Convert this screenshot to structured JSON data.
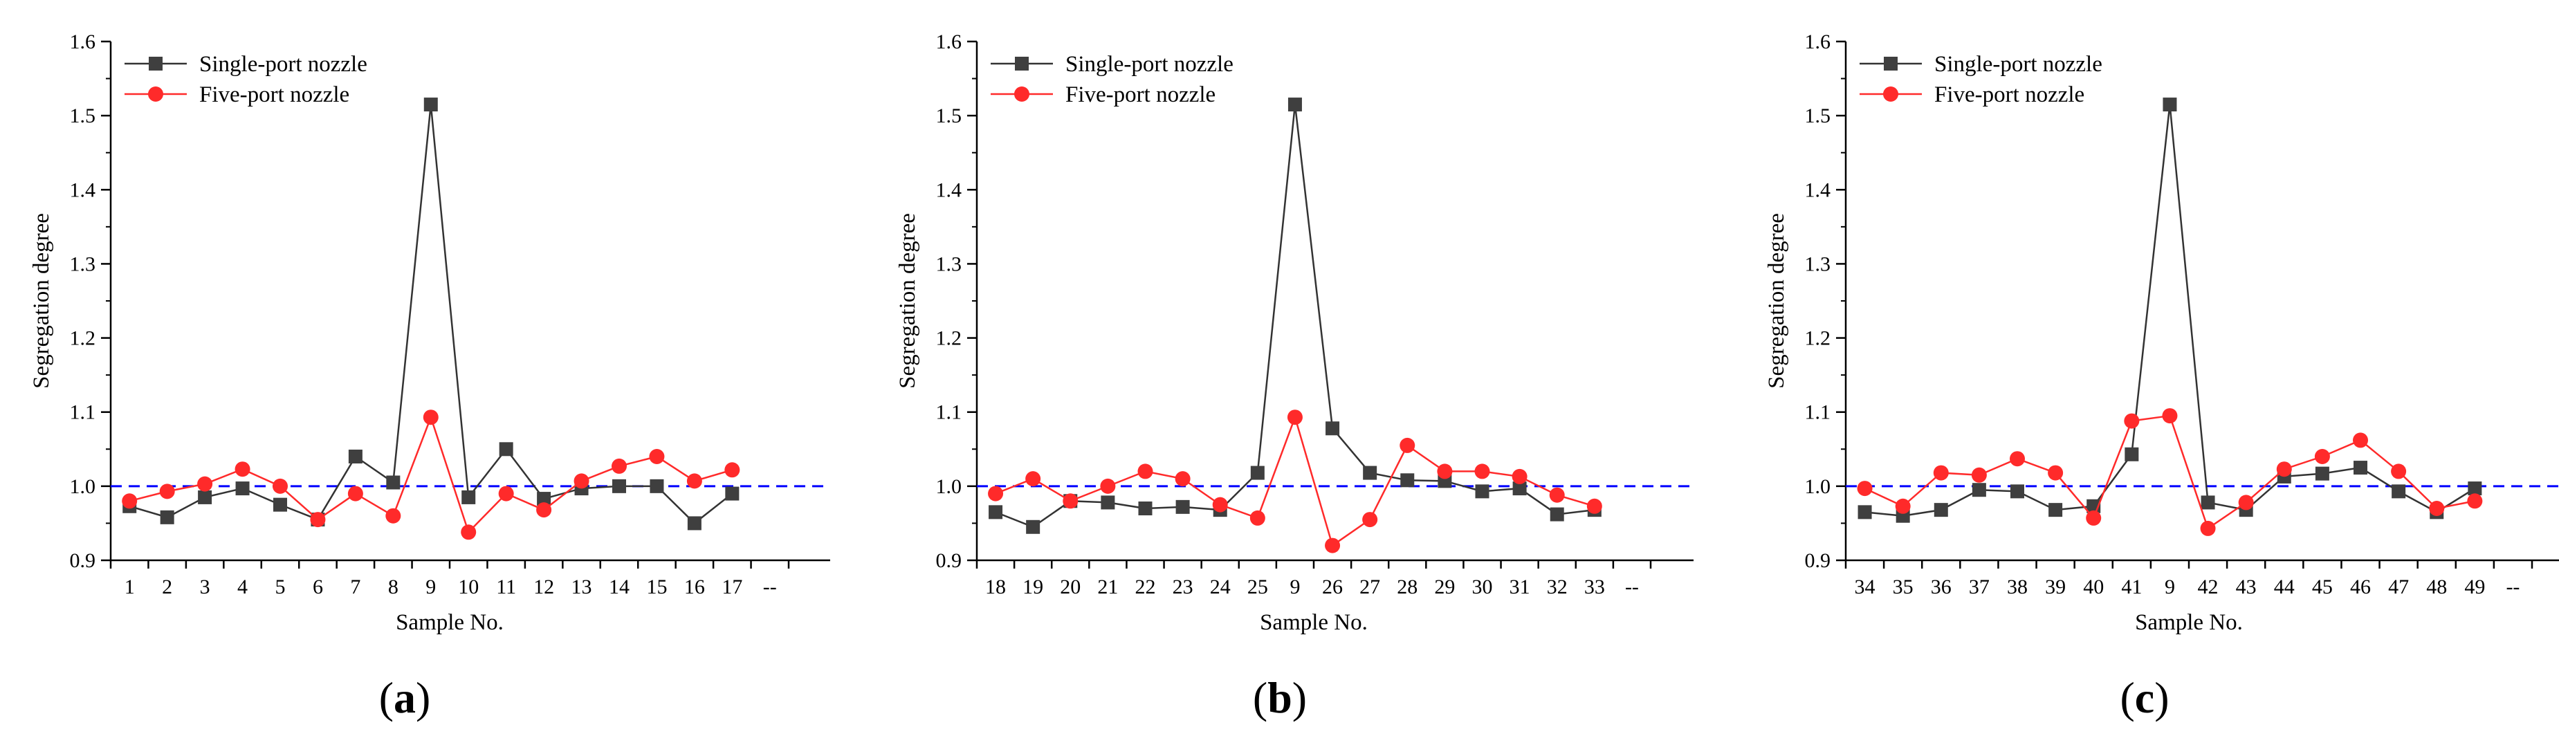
{
  "figure": {
    "panels": [
      {
        "open": "(",
        "letter": "a",
        "close": ")"
      },
      {
        "open": "(",
        "letter": "b",
        "close": ")"
      },
      {
        "open": "(",
        "letter": "c",
        "close": ")"
      }
    ]
  },
  "colors": {
    "single": "#3f3f3f",
    "single_line": "#333333",
    "five": "#ff2a2a",
    "reference": "#0000ff",
    "axis": "#000000"
  },
  "chart_data": [
    {
      "type": "line",
      "panel": "a",
      "title": "",
      "xlabel": "Sample No.",
      "ylabel": "Segregation degree",
      "ylim": [
        0.9,
        1.6
      ],
      "yticks": [
        0.9,
        1.0,
        1.1,
        1.2,
        1.3,
        1.4,
        1.5,
        1.6
      ],
      "categories": [
        "1",
        "2",
        "3",
        "4",
        "5",
        "6",
        "7",
        "8",
        "9",
        "10",
        "11",
        "12",
        "13",
        "14",
        "15",
        "16",
        "17",
        "--"
      ],
      "reference_line": 1.0,
      "legend_position": "top-left",
      "series": [
        {
          "name": "Single-port nozzle",
          "marker": "square",
          "values": [
            0.973,
            0.958,
            0.985,
            0.997,
            0.975,
            0.955,
            1.04,
            1.005,
            1.515,
            0.985,
            1.05,
            0.983,
            0.997,
            1.0,
            1.0,
            0.95,
            0.99,
            null
          ]
        },
        {
          "name": "Five-port nozzle",
          "marker": "circle",
          "values": [
            0.98,
            0.993,
            1.003,
            1.023,
            1.0,
            0.955,
            0.99,
            0.96,
            1.093,
            0.938,
            0.99,
            0.968,
            1.007,
            1.027,
            1.04,
            1.007,
            1.022,
            null
          ]
        }
      ]
    },
    {
      "type": "line",
      "panel": "b",
      "title": "",
      "xlabel": "Sample No.",
      "ylabel": "Segregation degree",
      "ylim": [
        0.9,
        1.6
      ],
      "yticks": [
        0.9,
        1.0,
        1.1,
        1.2,
        1.3,
        1.4,
        1.5,
        1.6
      ],
      "categories": [
        "18",
        "19",
        "20",
        "21",
        "22",
        "23",
        "24",
        "25",
        "9",
        "26",
        "27",
        "28",
        "29",
        "30",
        "31",
        "32",
        "33",
        "--"
      ],
      "reference_line": 1.0,
      "legend_position": "top-left",
      "series": [
        {
          "name": "Single-port nozzle",
          "marker": "square",
          "values": [
            0.965,
            0.945,
            0.98,
            0.978,
            0.97,
            0.972,
            0.968,
            1.018,
            1.515,
            1.078,
            1.018,
            1.008,
            1.007,
            0.993,
            0.997,
            0.962,
            0.968,
            null
          ]
        },
        {
          "name": "Five-port nozzle",
          "marker": "circle",
          "values": [
            0.99,
            1.01,
            0.98,
            1.0,
            1.02,
            1.01,
            0.975,
            0.957,
            1.093,
            0.92,
            0.955,
            1.055,
            1.02,
            1.02,
            1.013,
            0.988,
            0.973,
            null
          ]
        }
      ]
    },
    {
      "type": "line",
      "panel": "c",
      "title": "",
      "xlabel": "Sample No.",
      "ylabel": "Segregation degree",
      "ylim": [
        0.9,
        1.6
      ],
      "yticks": [
        0.9,
        1.0,
        1.1,
        1.2,
        1.3,
        1.4,
        1.5,
        1.6
      ],
      "categories": [
        "34",
        "35",
        "36",
        "37",
        "38",
        "39",
        "40",
        "41",
        "9",
        "42",
        "43",
        "44",
        "45",
        "46",
        "47",
        "48",
        "49",
        "--"
      ],
      "reference_line": 1.0,
      "legend_position": "top-left",
      "series": [
        {
          "name": "Single-port nozzle",
          "marker": "square",
          "values": [
            0.965,
            0.96,
            0.968,
            0.995,
            0.993,
            0.968,
            0.973,
            1.043,
            1.515,
            0.978,
            0.968,
            1.013,
            1.017,
            1.025,
            0.993,
            0.965,
            0.997,
            null
          ]
        },
        {
          "name": "Five-port nozzle",
          "marker": "circle",
          "values": [
            0.997,
            0.973,
            1.018,
            1.015,
            1.037,
            1.018,
            0.957,
            1.088,
            1.095,
            0.943,
            0.978,
            1.023,
            1.04,
            1.062,
            1.02,
            0.97,
            0.98,
            null
          ]
        }
      ]
    }
  ]
}
